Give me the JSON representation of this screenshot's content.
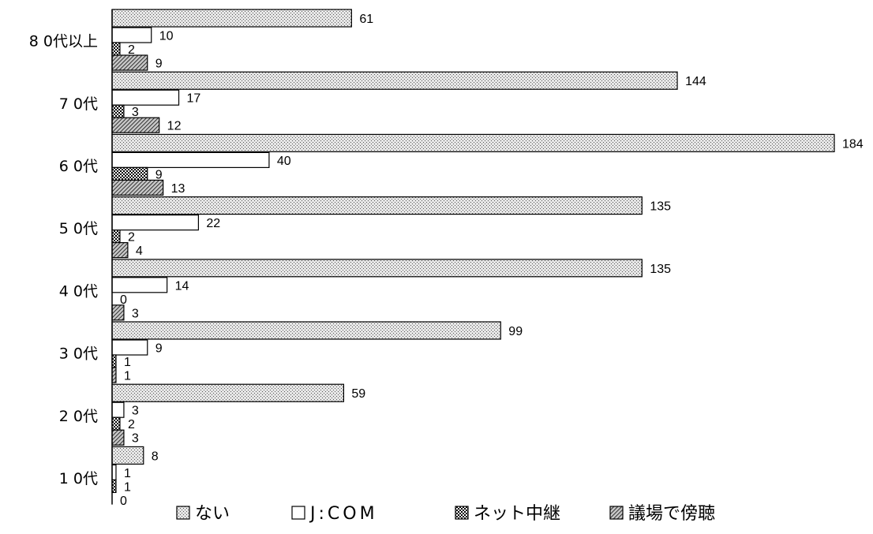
{
  "chart_data": {
    "type": "bar",
    "orientation": "horizontal",
    "categories": [
      "8 0代以上",
      "7 0代",
      "6 0代",
      "5 0代",
      "4 0代",
      "3 0代",
      "2 0代",
      "1 0代"
    ],
    "series": [
      {
        "name": "ない",
        "values": [
          61,
          144,
          184,
          135,
          135,
          99,
          59,
          8
        ]
      },
      {
        "name": "J:COM",
        "values": [
          10,
          17,
          40,
          22,
          14,
          9,
          3,
          1
        ]
      },
      {
        "name": "ネット中継",
        "values": [
          2,
          3,
          9,
          2,
          0,
          1,
          2,
          1
        ]
      },
      {
        "name": "議場で傍聴",
        "values": [
          9,
          12,
          13,
          4,
          3,
          1,
          3,
          0
        ]
      }
    ],
    "xlim": [
      0,
      184
    ],
    "grid": false,
    "legend": "bottom",
    "data_labels": true
  }
}
